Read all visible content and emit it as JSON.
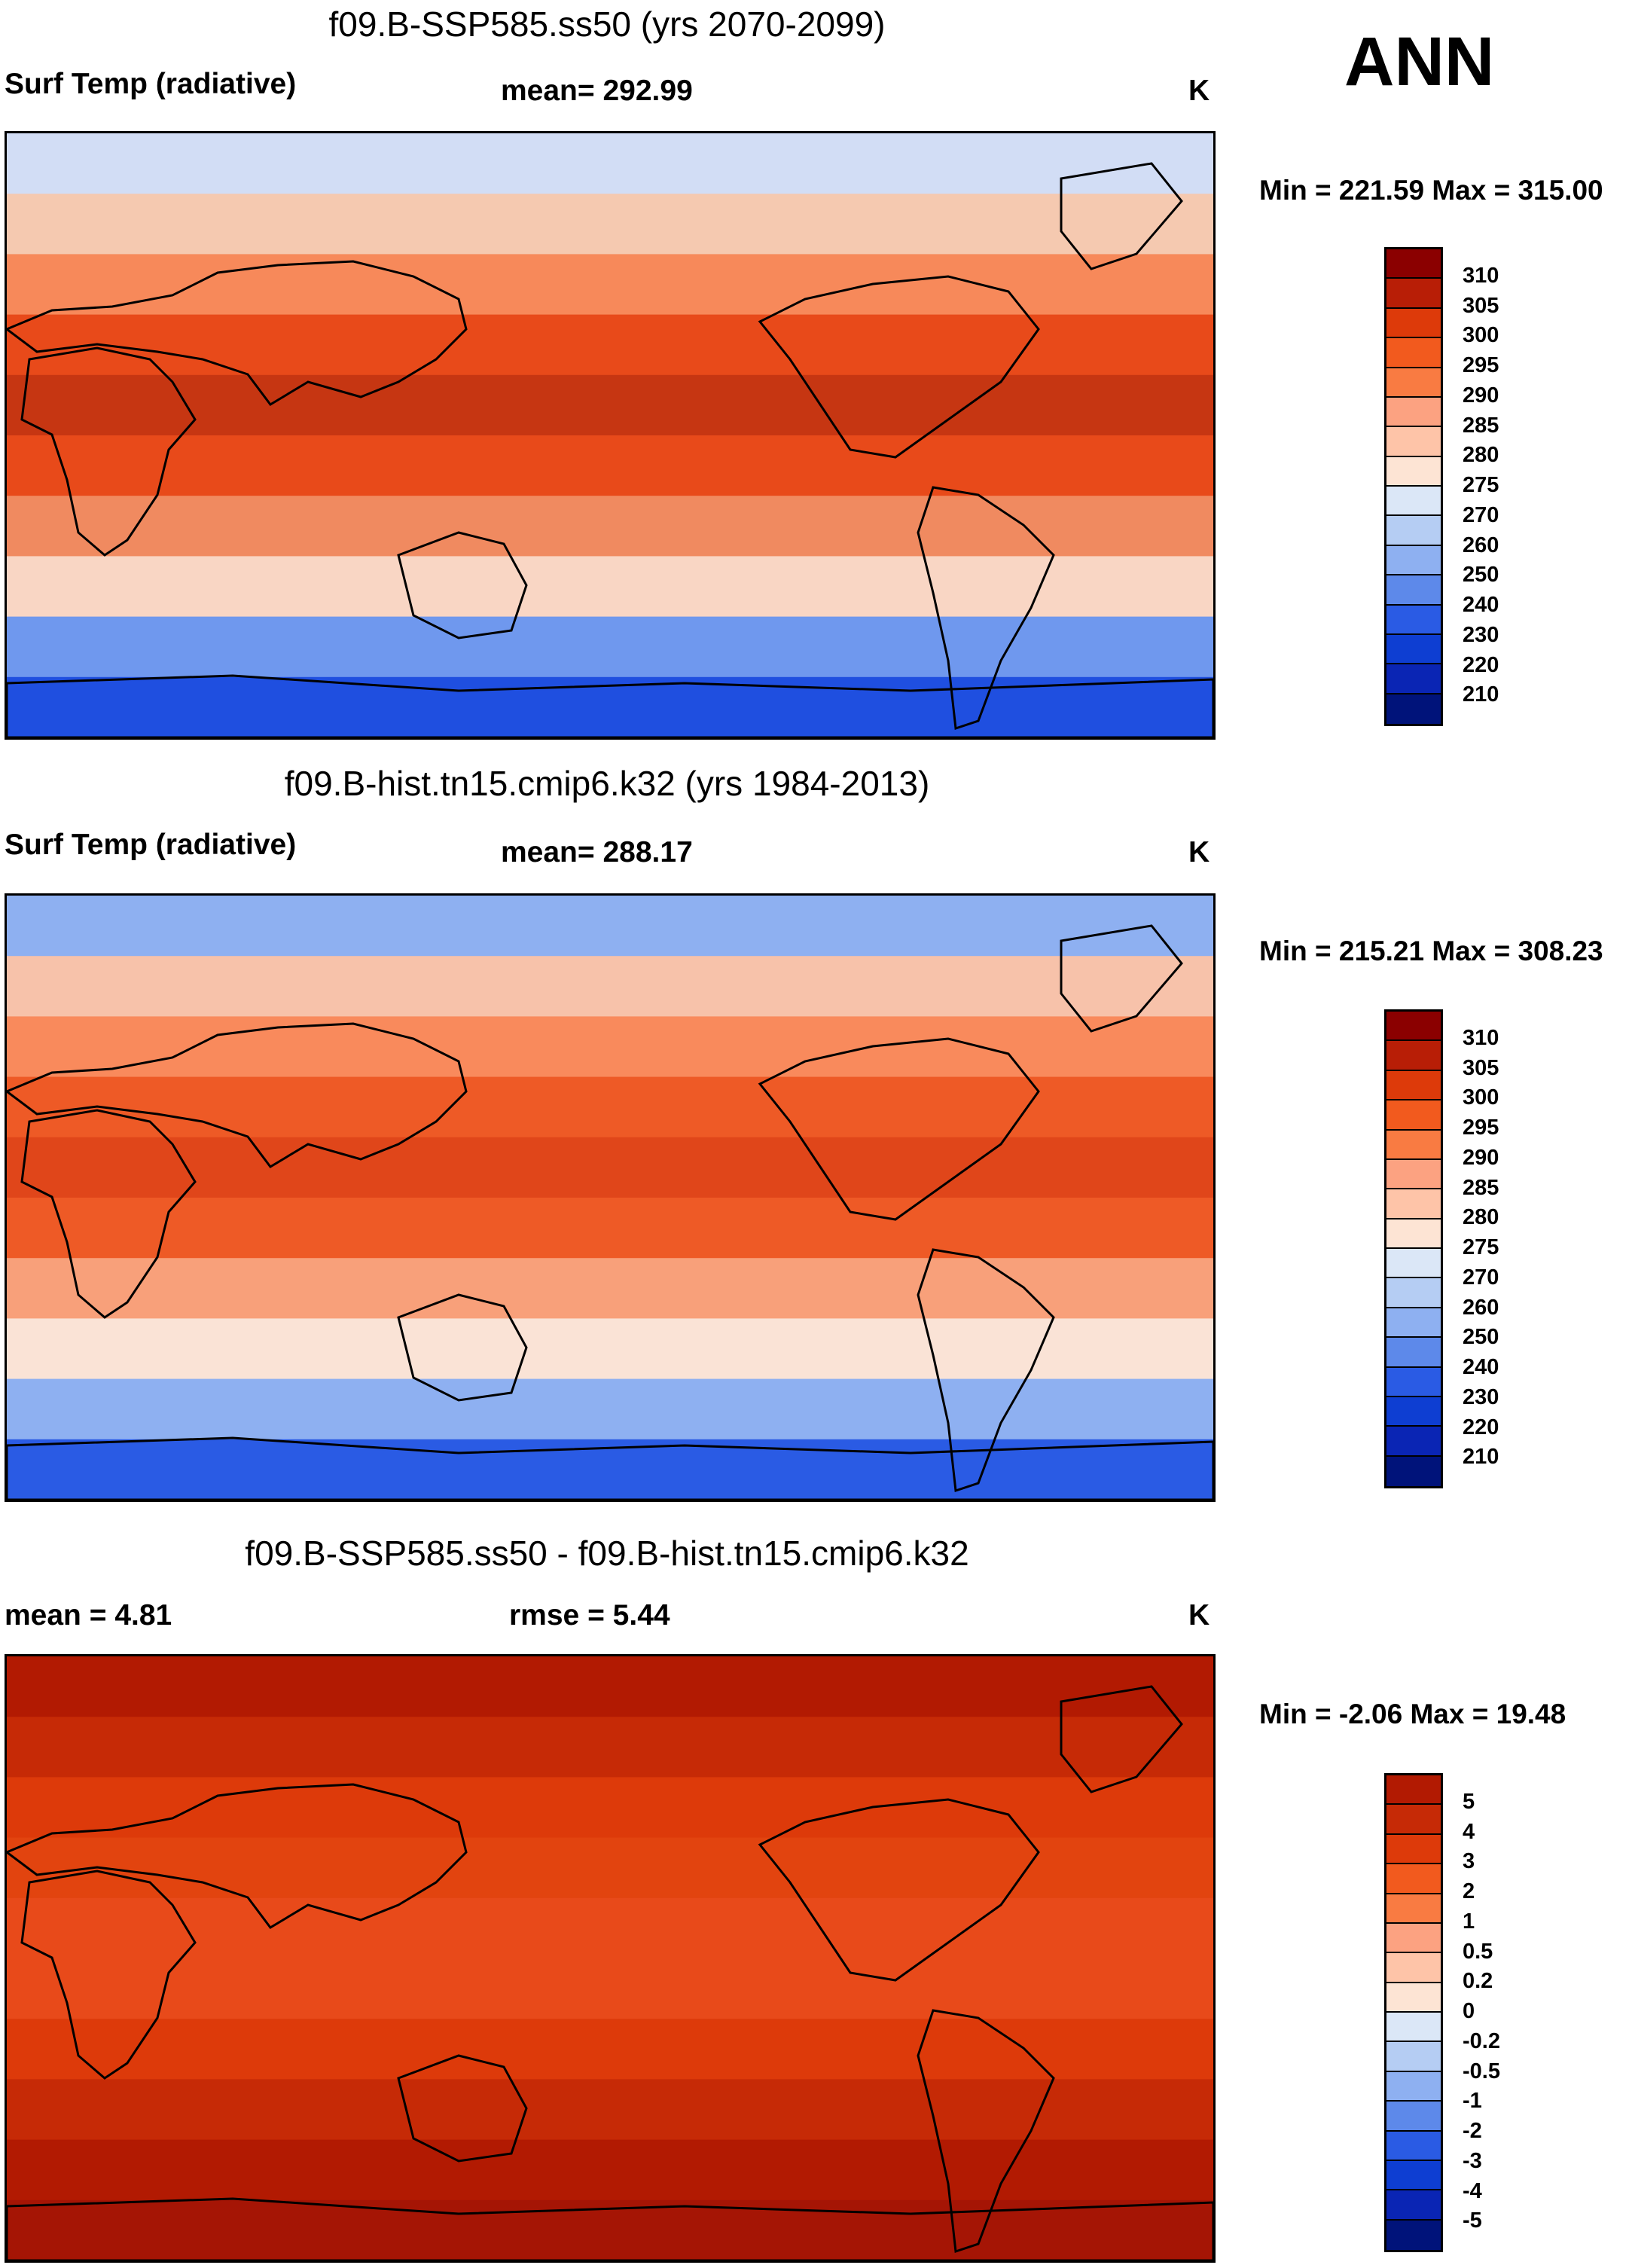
{
  "season_label": "ANN",
  "panels": [
    {
      "title": "f09.B-SSP585.ss50 (yrs 2070-2099)",
      "variable": "Surf Temp (radiative)",
      "stat1": "mean= 292.99",
      "stat2": "",
      "units": "K",
      "minmax": "Min = 221.59 Max = 315.00",
      "colorbar": {
        "labels": [
          "310",
          "305",
          "300",
          "295",
          "290",
          "285",
          "280",
          "275",
          "270",
          "260",
          "250",
          "240",
          "230",
          "220",
          "210"
        ],
        "colors": [
          "#8b0000",
          "#b81e06",
          "#dd3a0a",
          "#f25a1e",
          "#f97b42",
          "#fca281",
          "#fec4a8",
          "#fde4d4",
          "#dbe7f7",
          "#b5cdf3",
          "#8eb0f1",
          "#5d89ea",
          "#2a5be4",
          "#0e3ed2",
          "#0a25b4",
          "#00137a"
        ]
      },
      "bands": [
        "#d2ddf5",
        "#f5c9b0",
        "#f7895a",
        "#e84a1a",
        "#c63612",
        "#e84a1a",
        "#f08a60",
        "#f9d6c4",
        "#6f98ee",
        "#1f4fe0"
      ]
    },
    {
      "title": "f09.B-hist.tn15.cmip6.k32 (yrs 1984-2013)",
      "variable": "Surf Temp (radiative)",
      "stat1": "mean= 288.17",
      "stat2": "",
      "units": "K",
      "minmax": "Min = 215.21 Max = 308.23",
      "colorbar": {
        "labels": [
          "310",
          "305",
          "300",
          "295",
          "290",
          "285",
          "280",
          "275",
          "270",
          "260",
          "250",
          "240",
          "230",
          "220",
          "210"
        ],
        "colors": [
          "#8b0000",
          "#b81e06",
          "#dd3a0a",
          "#f25a1e",
          "#f97b42",
          "#fca281",
          "#fec4a8",
          "#fde4d4",
          "#dbe7f7",
          "#b5cdf3",
          "#8eb0f1",
          "#5d89ea",
          "#2a5be4",
          "#0e3ed2",
          "#0a25b4",
          "#00137a"
        ]
      },
      "bands": [
        "#8eb0f1",
        "#f7c2aa",
        "#f98a5c",
        "#ee5a26",
        "#e0461a",
        "#ee5a26",
        "#f8a07a",
        "#fae3d6",
        "#8eb0f1",
        "#2a5be4"
      ]
    },
    {
      "title": "f09.B-SSP585.ss50 - f09.B-hist.tn15.cmip6.k32",
      "variable": "mean =   4.81",
      "stat1": "rmse =   5.44",
      "stat2": "",
      "units": "K",
      "minmax": "Min =  -2.06 Max =  19.48",
      "colorbar": {
        "labels": [
          "5",
          "4",
          "3",
          "2",
          "1",
          "0.5",
          "0.2",
          "0",
          "-0.2",
          "-0.5",
          "-1",
          "-2",
          "-3",
          "-4",
          "-5"
        ],
        "colors": [
          "#b21a02",
          "#c62a06",
          "#dd3a0a",
          "#f25a1e",
          "#f97b42",
          "#fca281",
          "#fec4a8",
          "#fde4d4",
          "#dbe7f7",
          "#b5cdf3",
          "#8eb0f1",
          "#5d89ea",
          "#2a5be4",
          "#0e3ed2",
          "#0a25b4",
          "#00137a"
        ]
      },
      "bands": [
        "#b21a02",
        "#c62a06",
        "#dd3a0a",
        "#e2440f",
        "#e84a1a",
        "#e84a1a",
        "#dd3a0a",
        "#c62a06",
        "#b21a02",
        "#a51505"
      ]
    }
  ]
}
